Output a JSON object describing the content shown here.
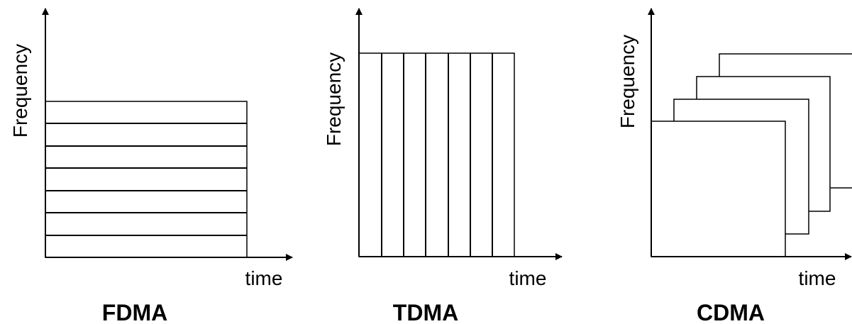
{
  "panels": [
    {
      "title": "FDMA",
      "y_label": "Frequency",
      "x_label": "time"
    },
    {
      "title": "TDMA",
      "y_label": "Frequency",
      "x_label": "time"
    },
    {
      "title": "CDMA",
      "y_label": "Frequency",
      "x_label": "time"
    }
  ]
}
